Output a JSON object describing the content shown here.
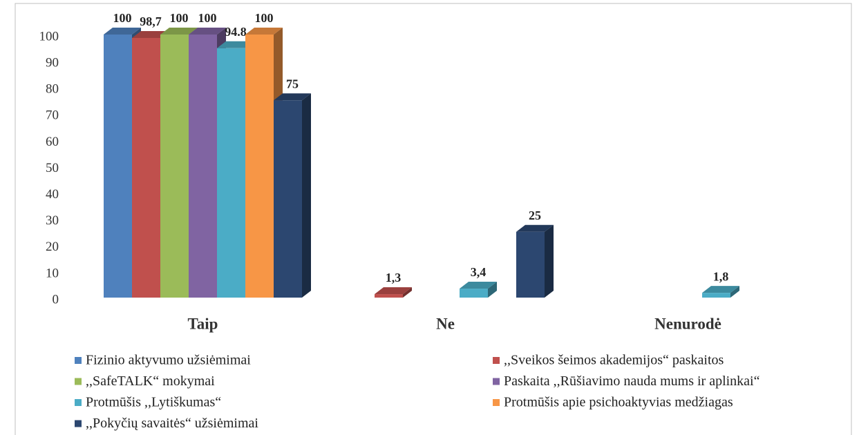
{
  "chart_data": {
    "type": "bar3d",
    "categories": [
      "Taip",
      "Ne",
      "Nenurodė"
    ],
    "ylim": [
      0,
      100
    ],
    "yticks": [
      0,
      10,
      20,
      30,
      40,
      50,
      60,
      70,
      80,
      90,
      100
    ],
    "series": [
      {
        "name": "Fizinio aktyvumo užsiėmimai",
        "color": "#4f81bd",
        "values": [
          100,
          null,
          null
        ],
        "value_labels": [
          "100",
          null,
          null
        ]
      },
      {
        "name": ",,Sveikos šeimos akademijos“ paskaitos",
        "color": "#c0504d",
        "values": [
          98.7,
          1.3,
          null
        ],
        "value_labels": [
          "98,7",
          "1,3",
          null
        ]
      },
      {
        "name": ",,SafeTALK“  mokymai",
        "color": "#9bbb59",
        "values": [
          100,
          null,
          null
        ],
        "value_labels": [
          "100",
          null,
          null
        ]
      },
      {
        "name": "Paskaita ,,Rūšiavimo nauda mums ir aplinkai“",
        "color": "#8064a2",
        "values": [
          100,
          null,
          null
        ],
        "value_labels": [
          "100",
          null,
          null
        ]
      },
      {
        "name": "Protmūšis ,,Lytiškumas“",
        "color": "#4bacc6",
        "values": [
          94.8,
          3.4,
          1.8
        ],
        "value_labels": [
          "94.8",
          "3,4",
          "1,8"
        ]
      },
      {
        "name": "Protmūšis apie psichoaktyvias medžiagas",
        "color": "#f79646",
        "values": [
          100,
          null,
          null
        ],
        "value_labels": [
          "100",
          null,
          null
        ]
      },
      {
        "name": ",,Pokyčių savaitės“ užsiėmimai",
        "color": "#2c4770",
        "values": [
          75,
          25,
          null
        ],
        "value_labels": [
          "75",
          "25",
          null
        ]
      }
    ]
  }
}
